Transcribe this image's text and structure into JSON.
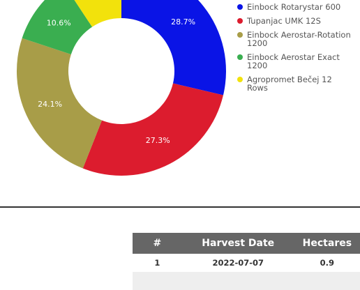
{
  "chart_data": {
    "type": "pie",
    "categories": [
      "Einbock Rotarystar 600",
      "Tupanjac UMK 12S",
      "Einbock Aerostar-Rotation 1200",
      "Einbock Aerostar Exact 1200",
      "Agropromet Bečej 12 Rows"
    ],
    "values": [
      28.7,
      27.3,
      24.1,
      10.6,
      9.3
    ],
    "value_labels": [
      "28.7%",
      "27.3%",
      "24.1%",
      "10.6%",
      null
    ],
    "colors": [
      "#0a14e6",
      "#dc1c2e",
      "#a89d48",
      "#3aae50",
      "#f2e20c"
    ],
    "donut": true,
    "legend": "right"
  },
  "table": {
    "columns": [
      "#",
      "Harvest Date",
      "Hectares"
    ],
    "rows": [
      [
        "1",
        "2022-07-07",
        "0.9"
      ]
    ]
  }
}
